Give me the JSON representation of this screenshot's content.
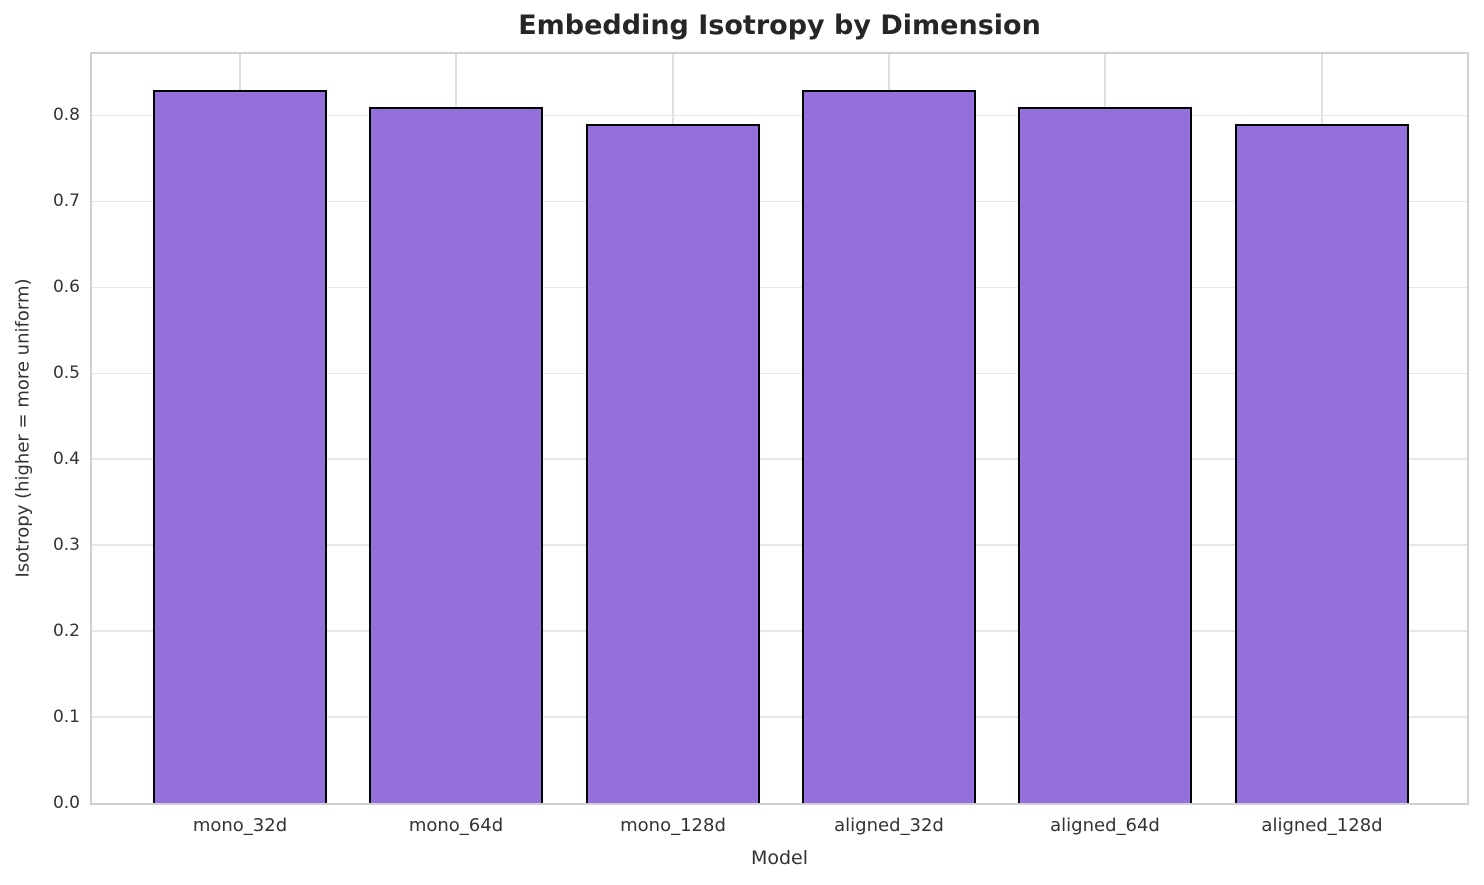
{
  "chart_data": {
    "type": "bar",
    "title": "Embedding Isotropy by Dimension",
    "xlabel": "Model",
    "ylabel": "Isotropy (higher = more uniform)",
    "categories": [
      "mono_32d",
      "mono_64d",
      "mono_128d",
      "aligned_32d",
      "aligned_64d",
      "aligned_128d"
    ],
    "values": [
      0.83,
      0.81,
      0.79,
      0.83,
      0.81,
      0.79
    ],
    "ylim": [
      0,
      0.8715
    ],
    "yticks": [
      0.0,
      0.1,
      0.2,
      0.3,
      0.4,
      0.5,
      0.6,
      0.7,
      0.8
    ],
    "grid": true,
    "legend": false,
    "bar_color": "#9370db",
    "bar_edge_color": "#000000",
    "grid_color": "#e7e7e7",
    "spine_color": "#d0d0d0",
    "text_color": "#333333"
  }
}
